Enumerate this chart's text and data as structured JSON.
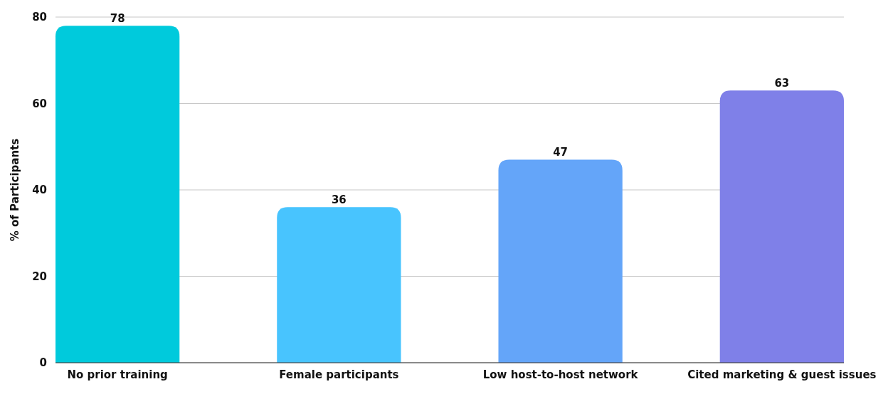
{
  "chart_data": {
    "type": "bar",
    "ylabel": "% of Participants",
    "categories": [
      "No prior training",
      "Female participants",
      "Low host-to-host network",
      "Cited marketing & guest issues"
    ],
    "values": [
      78,
      36,
      47,
      63
    ],
    "colors": [
      "#00cadc",
      "#48c4fe",
      "#64a5f9",
      "#7f80e8"
    ],
    "ylim": [
      0,
      80
    ],
    "yticks": [
      0,
      20,
      40,
      60,
      80
    ],
    "grid": "y",
    "data_labels": true
  }
}
